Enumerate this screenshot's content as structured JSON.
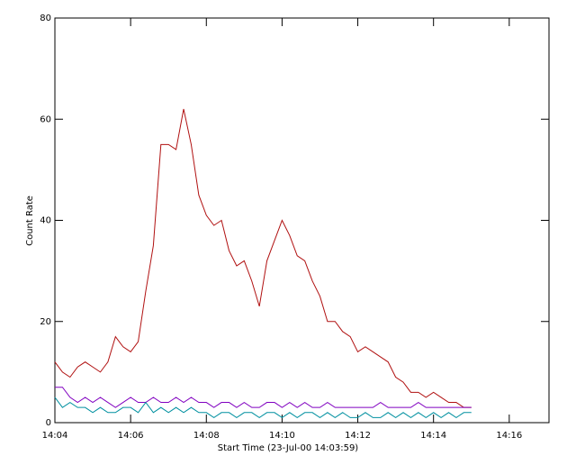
{
  "chart_data": {
    "type": "line",
    "xlabel": "Start Time (23-Jul-00 14:03:59)",
    "ylabel": "Count Rate",
    "x": [
      844.0,
      844.2,
      844.4,
      844.6,
      844.8,
      845.0,
      845.2,
      845.4,
      845.6,
      845.8,
      846.0,
      846.2,
      846.4,
      846.6,
      846.8,
      847.0,
      847.2,
      847.4,
      847.6,
      847.8,
      848.0,
      848.2,
      848.4,
      848.6,
      848.8,
      849.0,
      849.2,
      849.4,
      849.6,
      849.8,
      850.0,
      850.2,
      850.4,
      850.6,
      850.8,
      851.0,
      851.2,
      851.4,
      851.6,
      851.8,
      852.0,
      852.2,
      852.4,
      852.6,
      852.8,
      853.0,
      853.2,
      853.4,
      853.6,
      853.8,
      854.0,
      854.2,
      854.4,
      854.6,
      854.8,
      855.0
    ],
    "series": [
      {
        "color": "#b01010",
        "values": [
          12,
          10,
          9,
          11,
          12,
          11,
          10,
          12,
          17,
          15,
          14,
          16,
          26,
          35,
          55,
          55,
          54,
          62,
          55,
          45,
          41,
          39,
          40,
          34,
          31,
          32,
          28,
          23,
          32,
          36,
          40,
          37,
          33,
          32,
          28,
          25,
          20,
          20,
          18,
          17,
          14,
          15,
          14,
          13,
          12,
          9,
          8,
          6,
          6,
          5,
          6,
          5,
          4,
          4,
          3,
          3
        ]
      },
      {
        "color": "#8000c0",
        "values": [
          7,
          7,
          5,
          4,
          5,
          4,
          5,
          4,
          3,
          4,
          5,
          4,
          4,
          5,
          4,
          4,
          5,
          4,
          5,
          4,
          4,
          3,
          4,
          4,
          3,
          4,
          3,
          3,
          4,
          4,
          3,
          4,
          3,
          4,
          3,
          3,
          4,
          3,
          3,
          3,
          3,
          3,
          3,
          4,
          3,
          3,
          3,
          3,
          4,
          3,
          3,
          3,
          3,
          3,
          3,
          3
        ]
      },
      {
        "color": "#0090a0",
        "values": [
          5,
          3,
          4,
          3,
          3,
          2,
          3,
          2,
          2,
          3,
          3,
          2,
          4,
          2,
          3,
          2,
          3,
          2,
          3,
          2,
          2,
          1,
          2,
          2,
          1,
          2,
          2,
          1,
          2,
          2,
          1,
          2,
          1,
          2,
          2,
          1,
          2,
          1,
          2,
          1,
          1,
          2,
          1,
          1,
          2,
          1,
          2,
          1,
          2,
          1,
          2,
          1,
          2,
          1,
          2,
          2
        ]
      }
    ],
    "xlim": [
      844,
      857.05
    ],
    "xticks": [
      {
        "value": 844,
        "label": "14:04"
      },
      {
        "value": 846,
        "label": "14:06"
      },
      {
        "value": 848,
        "label": "14:08"
      },
      {
        "value": 850,
        "label": "14:10"
      },
      {
        "value": 852,
        "label": "14:12"
      },
      {
        "value": 854,
        "label": "14:14"
      },
      {
        "value": 856,
        "label": "14:16"
      }
    ],
    "ylim": [
      0,
      80
    ],
    "yticks": [
      0,
      20,
      40,
      60,
      80
    ]
  }
}
